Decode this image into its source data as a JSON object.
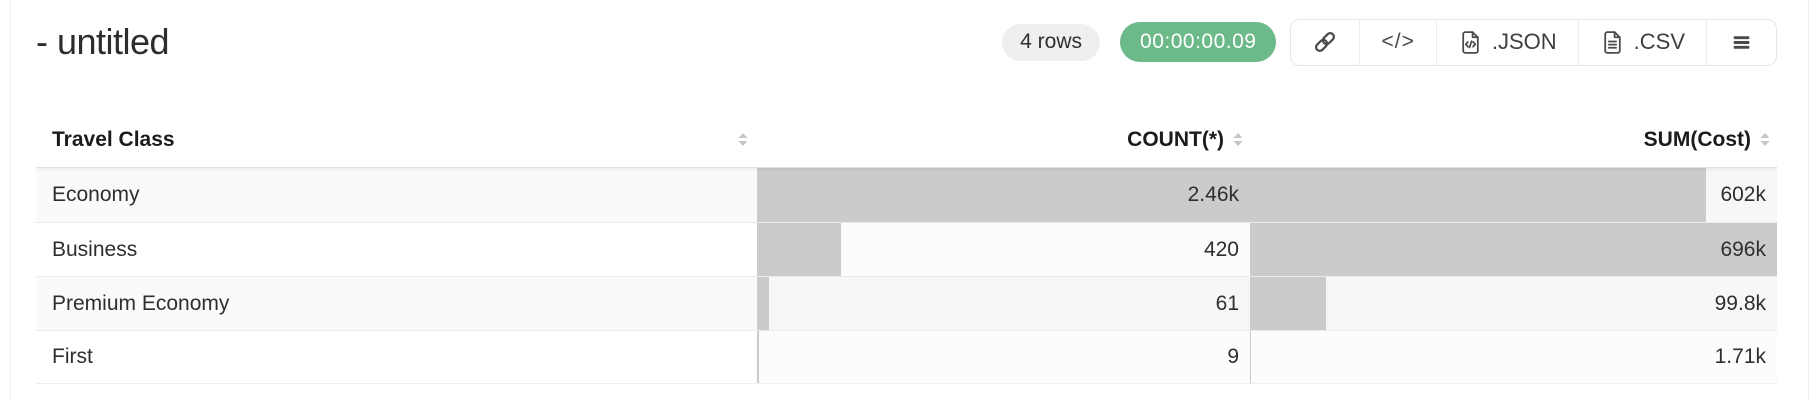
{
  "header": {
    "title": "- untitled",
    "row_count_badge": "4 rows",
    "elapsed_badge": "00:00:00.09",
    "toolbar": {
      "link_button": {
        "icon": "link-icon"
      },
      "code_button": {
        "label": "</>"
      },
      "json_button": {
        "label": ".JSON",
        "icon": "file-code-icon"
      },
      "csv_button": {
        "label": ".CSV",
        "icon": "file-text-icon"
      },
      "menu_button": {
        "icon": "menu-icon"
      }
    }
  },
  "table": {
    "columns": [
      {
        "label": "Travel Class",
        "align": "left",
        "sortable": true
      },
      {
        "label": "COUNT(*)",
        "align": "right",
        "sortable": true
      },
      {
        "label": "SUM(Cost)",
        "align": "right",
        "sortable": true
      }
    ],
    "rows": [
      {
        "label": "Economy",
        "count": {
          "display": "2.46k",
          "value": 2460
        },
        "sum": {
          "display": "602k",
          "value": 602000
        }
      },
      {
        "label": "Business",
        "count": {
          "display": "420",
          "value": 420
        },
        "sum": {
          "display": "696k",
          "value": 696000
        }
      },
      {
        "label": "Premium Economy",
        "count": {
          "display": "61",
          "value": 61
        },
        "sum": {
          "display": "99.8k",
          "value": 99800
        }
      },
      {
        "label": "First",
        "count": {
          "display": "9",
          "value": 9
        },
        "sum": {
          "display": "1.71k",
          "value": 1710
        }
      }
    ]
  },
  "colors": {
    "bar": "#cbcbcb",
    "badge_green": "#6cb989",
    "badge_gray_bg": "#efefef"
  }
}
